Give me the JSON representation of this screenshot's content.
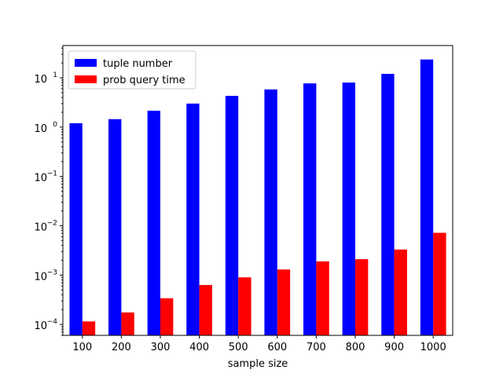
{
  "chart_data": {
    "type": "bar",
    "title": "",
    "xlabel": "sample size",
    "ylabel": "",
    "yscale": "log",
    "ylim": [
      6e-05,
      45
    ],
    "categories": [
      "100",
      "200",
      "300",
      "400",
      "500",
      "600",
      "700",
      "800",
      "900",
      "1000"
    ],
    "y_ticks": [
      {
        "value": 0.0001,
        "base": "10",
        "exp": "−4"
      },
      {
        "value": 0.001,
        "base": "10",
        "exp": "−3"
      },
      {
        "value": 0.01,
        "base": "10",
        "exp": "−2"
      },
      {
        "value": 0.1,
        "base": "10",
        "exp": "−1"
      },
      {
        "value": 1,
        "base": "10",
        "exp": "0"
      },
      {
        "value": 10,
        "base": "10",
        "exp": "1"
      }
    ],
    "series": [
      {
        "name": "tuple number",
        "color": "#0000ff",
        "values": [
          1.2,
          1.45,
          2.15,
          3.0,
          4.3,
          5.8,
          7.7,
          8.0,
          12.0,
          23.5
        ]
      },
      {
        "name": "prob query time",
        "color": "#ff0000",
        "values": [
          0.000115,
          0.000175,
          0.00034,
          0.00063,
          0.0009,
          0.0013,
          0.0019,
          0.0021,
          0.0033,
          0.0072
        ]
      }
    ],
    "legend_position": "upper-left",
    "grid": false
  }
}
